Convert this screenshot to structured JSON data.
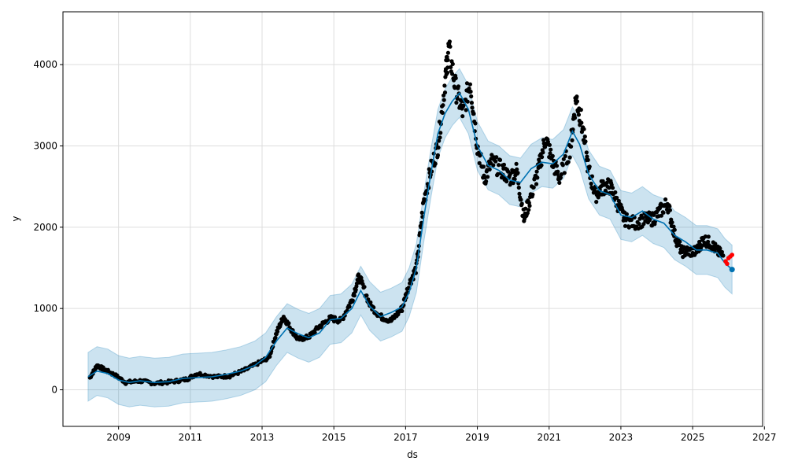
{
  "chart_data": {
    "type": "line",
    "title": "",
    "xlabel": "ds",
    "ylabel": "y",
    "xlim": [
      2007.45,
      2026.95
    ],
    "ylim": [
      -450,
      4650
    ],
    "x_ticks": [
      2009,
      2011,
      2013,
      2015,
      2017,
      2019,
      2021,
      2023,
      2025,
      2027
    ],
    "x_tick_labels": [
      "2009",
      "2011",
      "2013",
      "2015",
      "2017",
      "2019",
      "2021",
      "2023",
      "2025",
      "2027"
    ],
    "y_ticks": [
      0,
      1000,
      2000,
      3000,
      4000
    ],
    "y_tick_labels": [
      "0",
      "1000",
      "2000",
      "3000",
      "4000"
    ],
    "grid": true,
    "legend": "none",
    "colors": {
      "observed": "#000000",
      "forecast_line": "#0072B2",
      "uncertainty_band": "#0072B2",
      "recent_observed": "#ff0000"
    },
    "uncertainty_halfwidth": 300,
    "forecast": {
      "x": [
        2008.15,
        2008.4,
        2008.7,
        2009.0,
        2009.3,
        2009.6,
        2010.0,
        2010.4,
        2010.8,
        2011.2,
        2011.6,
        2012.0,
        2012.4,
        2012.8,
        2013.1,
        2013.4,
        2013.7,
        2014.0,
        2014.3,
        2014.6,
        2014.9,
        2015.2,
        2015.5,
        2015.75,
        2016.0,
        2016.3,
        2016.6,
        2016.9,
        2017.1,
        2017.3,
        2017.5,
        2017.7,
        2017.9,
        2018.1,
        2018.3,
        2018.5,
        2018.75,
        2019.0,
        2019.3,
        2019.6,
        2019.9,
        2020.2,
        2020.5,
        2020.8,
        2021.1,
        2021.4,
        2021.65,
        2021.85,
        2022.1,
        2022.4,
        2022.7,
        2023.0,
        2023.3,
        2023.6,
        2023.9,
        2024.2,
        2024.5,
        2024.8,
        2025.1,
        2025.4,
        2025.7,
        2025.9,
        2026.1
      ],
      "y": [
        160,
        230,
        200,
        120,
        90,
        110,
        90,
        100,
        140,
        150,
        160,
        190,
        230,
        300,
        400,
        600,
        760,
        690,
        640,
        700,
        860,
        880,
        1000,
        1220,
        1030,
        900,
        950,
        1020,
        1200,
        1500,
        2100,
        2650,
        3150,
        3400,
        3550,
        3650,
        3450,
        3000,
        2760,
        2700,
        2580,
        2550,
        2720,
        2800,
        2780,
        2900,
        3180,
        3020,
        2650,
        2450,
        2400,
        2150,
        2120,
        2200,
        2100,
        2050,
        1900,
        1820,
        1720,
        1720,
        1680,
        1560,
        1480
      ]
    },
    "observed_points": {
      "x": [
        2008.2,
        2008.4,
        2008.6,
        2008.9,
        2009.2,
        2009.6,
        2010.0,
        2010.5,
        2010.9,
        2011.2,
        2011.7,
        2012.1,
        2012.5,
        2012.9,
        2013.2,
        2013.4,
        2013.6,
        2013.8,
        2014.0,
        2014.3,
        2014.6,
        2014.9,
        2015.2,
        2015.5,
        2015.7,
        2016.0,
        2016.3,
        2016.6,
        2016.9,
        2017.1,
        2017.3,
        2017.5,
        2017.7,
        2017.9,
        2018.1,
        2018.2,
        2018.4,
        2018.6,
        2018.8,
        2019.0,
        2019.2,
        2019.4,
        2019.7,
        2019.9,
        2020.1,
        2020.3,
        2020.5,
        2020.7,
        2020.9,
        2021.1,
        2021.3,
        2021.6,
        2021.75,
        2021.9,
        2022.1,
        2022.3,
        2022.5,
        2022.7,
        2022.9,
        2023.1,
        2023.4,
        2023.7,
        2023.9,
        2024.1,
        2024.3,
        2024.5,
        2024.7,
        2024.9,
        2025.1,
        2025.3,
        2025.5,
        2025.7,
        2025.85
      ],
      "y": [
        150,
        300,
        250,
        180,
        90,
        110,
        80,
        100,
        130,
        200,
        160,
        170,
        240,
        330,
        400,
        700,
        900,
        750,
        620,
        650,
        780,
        880,
        850,
        1100,
        1400,
        1050,
        900,
        850,
        1000,
        1300,
        1500,
        2300,
        2700,
        3000,
        3800,
        4200,
        3700,
        3400,
        3800,
        3000,
        2600,
        2800,
        2700,
        2600,
        2700,
        2100,
        2400,
        2700,
        3100,
        2800,
        2600,
        3000,
        3600,
        3300,
        2700,
        2400,
        2500,
        2500,
        2300,
        2100,
        2050,
        2100,
        2100,
        2200,
        2300,
        1900,
        1700,
        1700,
        1700,
        1850,
        1800,
        1700,
        1650
      ]
    },
    "recent_observed_points": {
      "x": [
        2025.92,
        2025.96,
        2026.0,
        2026.05,
        2026.1
      ],
      "y": [
        1580,
        1550,
        1620,
        1640,
        1660
      ]
    }
  }
}
